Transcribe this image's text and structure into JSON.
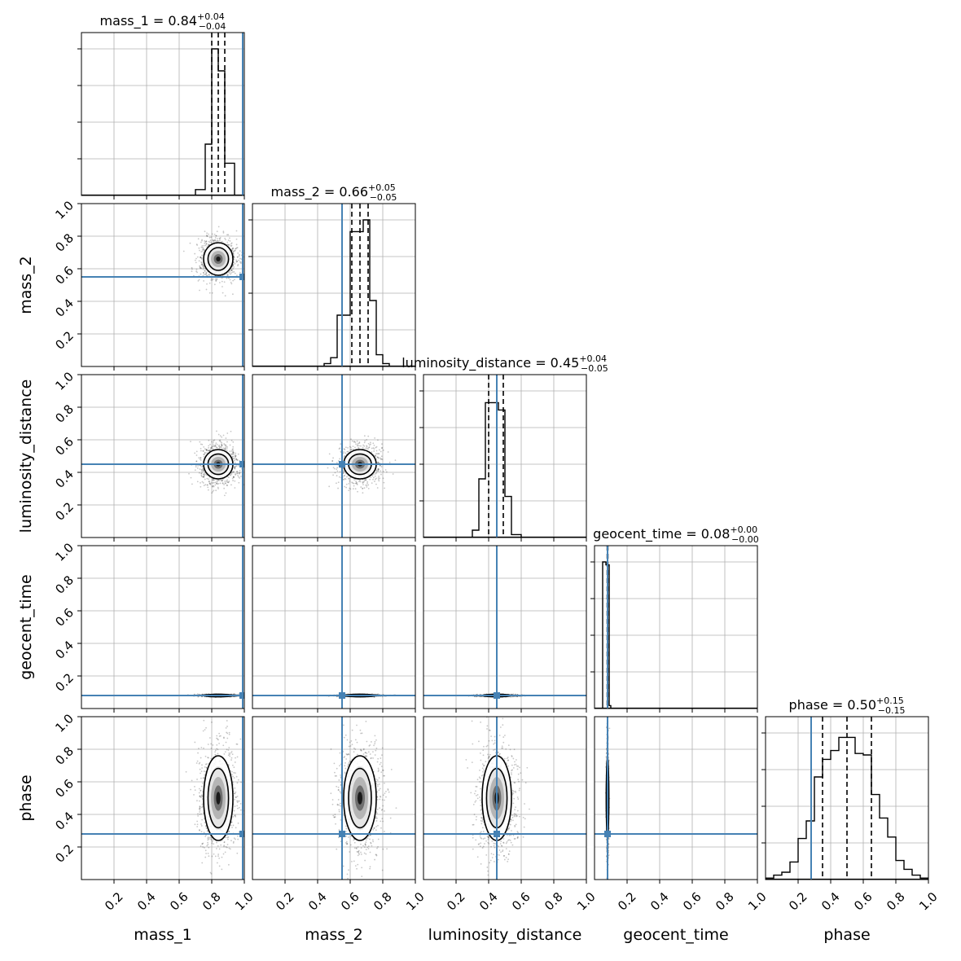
{
  "chart_data": {
    "type": "corner",
    "parameters": [
      "mass_1",
      "mass_2",
      "luminosity_distance",
      "geocent_time",
      "phase"
    ],
    "titles": [
      {
        "param": "mass_1",
        "text": "mass_1 = 0.84",
        "sup": "+0.04",
        "sub": "−0.04"
      },
      {
        "param": "mass_2",
        "text": "mass_2 = 0.66",
        "sup": "+0.05",
        "sub": "−0.05"
      },
      {
        "param": "luminosity_distance",
        "text": "luminosity_distance = 0.45",
        "sup": "+0.04",
        "sub": "−0.05"
      },
      {
        "param": "geocent_time",
        "text": "geocent_time = 0.08",
        "sup": "+0.00",
        "sub": "−0.00"
      },
      {
        "param": "phase",
        "text": "phase = 0.50",
        "sup": "+0.15",
        "sub": "−0.15"
      }
    ],
    "axis_range": [
      0,
      1
    ],
    "x_tick_labels": [
      "0.2",
      "0.4",
      "0.6",
      "0.8",
      "1.0"
    ],
    "y_tick_labels": [
      "0.2",
      "0.4",
      "0.6",
      "0.8",
      "1.0"
    ],
    "quantiles": [
      [
        0.8,
        0.84,
        0.88
      ],
      [
        0.61,
        0.66,
        0.71
      ],
      [
        0.4,
        0.45,
        0.49
      ],
      [
        0.078,
        0.08,
        0.082
      ],
      [
        0.35,
        0.5,
        0.65
      ]
    ],
    "truths": [
      0.99,
      0.55,
      0.45,
      0.08,
      0.28
    ],
    "medians": [
      0.84,
      0.66,
      0.45,
      0.08,
      0.5
    ],
    "sigmas": [
      0.045,
      0.05,
      0.045,
      0.0025,
      0.13
    ],
    "histograms": [
      {
        "param": "mass_1",
        "bins": [
          [
            0.7,
            0.76,
            0.04
          ],
          [
            0.76,
            0.8,
            0.35
          ],
          [
            0.8,
            0.84,
            1.0
          ],
          [
            0.84,
            0.88,
            0.85
          ],
          [
            0.88,
            0.94,
            0.22
          ]
        ]
      },
      {
        "param": "mass_2",
        "bins": [
          [
            0.44,
            0.48,
            0.02
          ],
          [
            0.48,
            0.52,
            0.06
          ],
          [
            0.52,
            0.56,
            0.35
          ],
          [
            0.56,
            0.6,
            0.35
          ],
          [
            0.6,
            0.64,
            0.92
          ],
          [
            0.64,
            0.68,
            0.92
          ],
          [
            0.68,
            0.72,
            1.0
          ],
          [
            0.72,
            0.76,
            0.45
          ],
          [
            0.76,
            0.8,
            0.08
          ],
          [
            0.8,
            0.84,
            0.02
          ]
        ]
      },
      {
        "param": "luminosity_distance",
        "bins": [
          [
            0.3,
            0.34,
            0.05
          ],
          [
            0.34,
            0.38,
            0.4
          ],
          [
            0.38,
            0.42,
            0.92
          ],
          [
            0.42,
            0.46,
            0.92
          ],
          [
            0.46,
            0.5,
            0.87
          ],
          [
            0.5,
            0.54,
            0.28
          ],
          [
            0.54,
            0.6,
            0.02
          ]
        ]
      },
      {
        "param": "geocent_time",
        "bins": [
          [
            0.05,
            0.07,
            1.0
          ],
          [
            0.07,
            0.09,
            0.98
          ],
          [
            0.09,
            0.1,
            0.02
          ]
        ]
      },
      {
        "param": "phase",
        "bins": [
          [
            0.0,
            0.05,
            0.01
          ],
          [
            0.05,
            0.1,
            0.03
          ],
          [
            0.1,
            0.15,
            0.05
          ],
          [
            0.15,
            0.2,
            0.12
          ],
          [
            0.2,
            0.25,
            0.28
          ],
          [
            0.25,
            0.3,
            0.4
          ],
          [
            0.3,
            0.35,
            0.7
          ],
          [
            0.35,
            0.4,
            0.82
          ],
          [
            0.4,
            0.45,
            0.88
          ],
          [
            0.45,
            0.5,
            0.97
          ],
          [
            0.5,
            0.55,
            0.97
          ],
          [
            0.55,
            0.6,
            0.86
          ],
          [
            0.6,
            0.65,
            0.85
          ],
          [
            0.65,
            0.7,
            0.58
          ],
          [
            0.7,
            0.75,
            0.42
          ],
          [
            0.75,
            0.8,
            0.29
          ],
          [
            0.8,
            0.85,
            0.13
          ],
          [
            0.85,
            0.9,
            0.07
          ],
          [
            0.9,
            0.95,
            0.03
          ],
          [
            0.95,
            1.0,
            0.01
          ]
        ]
      }
    ],
    "colors": {
      "truth": "#4682b4",
      "hist": "#000000",
      "grid": "#b0b0b0"
    },
    "grid": true
  }
}
